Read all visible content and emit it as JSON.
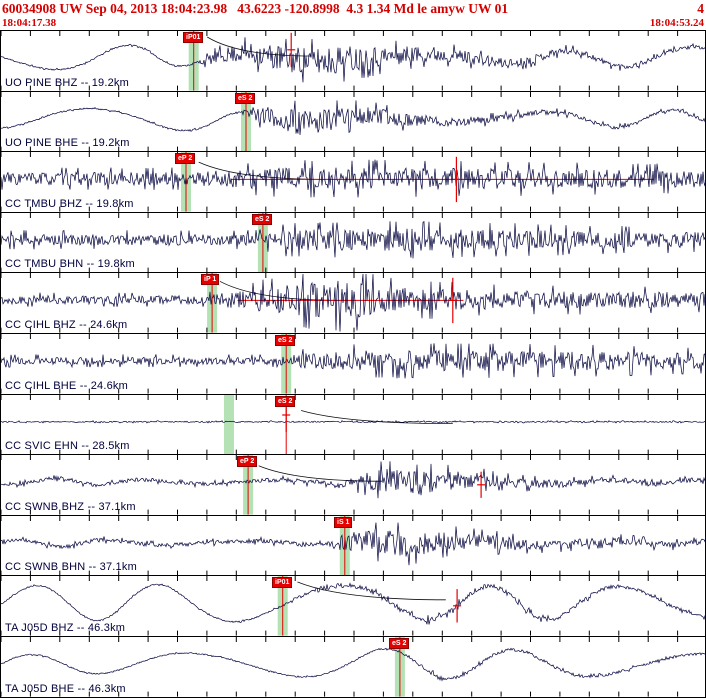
{
  "header": {
    "event_info": "60034908 UW Sep 04, 2013 18:04:23.98   43.6223 -120.8998  4.3 1.34 Md le amyw UW 01",
    "overflow_digit": "4",
    "window_start": "18:04:17.38",
    "window_end": "18:04:53.24"
  },
  "colors": {
    "header_text": "#d40000",
    "wave": "#00003c",
    "pick": "#e60000",
    "band": "#b5e2b5",
    "tick": "#000000"
  },
  "chart_data": {
    "type": "line",
    "title": "Seismic waveform review window, 11 station traces",
    "x_range": [
      "18:04:17.38",
      "18:04:53.24"
    ],
    "tick_intervals": 24,
    "traces": [
      {
        "label": "UO PINE BHZ -- 19.2km",
        "picks": [
          {
            "label": "iP01",
            "x": 0.273
          }
        ],
        "bands": [
          0.273
        ],
        "amp_marker": {
          "x": 0.411,
          "y0": 0.03,
          "y1": 0.6
        },
        "decay": {
          "x0": 0.292,
          "y0": 0.1,
          "x1": 0.44,
          "y1": 0.42
        },
        "wave": {
          "seed": 11,
          "lf_period": 150,
          "lf": [
            [
              0,
              11
            ],
            [
              0.22,
              13
            ],
            [
              0.275,
              6
            ],
            [
              0.5,
              2
            ],
            [
              0.75,
              6
            ],
            [
              1,
              11
            ]
          ],
          "hf": [
            [
              0,
              0.8
            ],
            [
              0.27,
              0.8
            ],
            [
              0.3,
              6
            ],
            [
              0.38,
              13
            ],
            [
              0.47,
              15
            ],
            [
              0.58,
              9
            ],
            [
              0.72,
              5
            ],
            [
              0.85,
              3
            ],
            [
              1,
              2
            ]
          ]
        }
      },
      {
        "label": "UO PINE BHE -- 19.2km",
        "picks": [
          {
            "label": "eS 2",
            "x": 0.347
          }
        ],
        "bands": [
          0.347
        ],
        "wave": {
          "seed": 22,
          "lf_period": 145,
          "lf": [
            [
              0,
              9
            ],
            [
              0.3,
              12
            ],
            [
              0.37,
              5
            ],
            [
              0.6,
              2
            ],
            [
              0.82,
              8
            ],
            [
              1,
              9
            ]
          ],
          "hf": [
            [
              0,
              0.8
            ],
            [
              0.34,
              0.8
            ],
            [
              0.36,
              8
            ],
            [
              0.42,
              15
            ],
            [
              0.5,
              10
            ],
            [
              0.62,
              5
            ],
            [
              0.8,
              2.5
            ],
            [
              1,
              1.5
            ]
          ]
        }
      },
      {
        "label": "CC TMBU BHZ -- 19.8km",
        "picks": [
          {
            "label": "eP 2",
            "x": 0.262
          }
        ],
        "bands": [
          0.262
        ],
        "hline": {
          "x0": 0.325,
          "x1": 0.925,
          "y": 0.46
        },
        "amp_marker": {
          "x": 0.645,
          "y0": 0.08,
          "y1": 0.84
        },
        "decay": {
          "x0": 0.28,
          "y0": 0.17,
          "x1": 0.46,
          "y1": 0.46
        },
        "wave": {
          "seed": 33,
          "hf": [
            [
              0,
              7
            ],
            [
              0.25,
              7
            ],
            [
              0.29,
              9
            ],
            [
              0.42,
              12
            ],
            [
              0.55,
              12
            ],
            [
              0.7,
              11
            ],
            [
              1,
              9
            ]
          ]
        }
      },
      {
        "label": "CC TMBU BHN -- 19.8km",
        "picks": [
          {
            "label": "eS 2",
            "x": 0.371
          }
        ],
        "bands": [
          0.371
        ],
        "wave": {
          "seed": 44,
          "hf": [
            [
              0,
              6
            ],
            [
              0.36,
              6
            ],
            [
              0.41,
              11
            ],
            [
              0.55,
              12
            ],
            [
              0.7,
              11
            ],
            [
              0.85,
              9
            ],
            [
              1,
              8
            ]
          ]
        }
      },
      {
        "label": "CC CIHL BHZ -- 24.6km",
        "picks": [
          {
            "label": "iP 1",
            "x": 0.299
          }
        ],
        "bands": [
          0.299
        ],
        "hline": {
          "x0": 0.335,
          "x1": 0.655,
          "y": 0.46
        },
        "amp_marker": {
          "x": 0.64,
          "y0": 0.08,
          "y1": 0.84
        },
        "decay": {
          "x0": 0.31,
          "y0": 0.14,
          "x1": 0.48,
          "y1": 0.46
        },
        "wave": {
          "seed": 55,
          "hf": [
            [
              0,
              4.5
            ],
            [
              0.29,
              4.5
            ],
            [
              0.32,
              8
            ],
            [
              0.43,
              18
            ],
            [
              0.49,
              21
            ],
            [
              0.56,
              13
            ],
            [
              0.7,
              10
            ],
            [
              1,
              8
            ]
          ]
        }
      },
      {
        "label": "CC CIHL BHE -- 24.6km",
        "picks": [
          {
            "label": "eS 2",
            "x": 0.404
          }
        ],
        "bands": [
          0.404
        ],
        "wave": {
          "seed": 66,
          "hf": [
            [
              0,
              4
            ],
            [
              0.39,
              4
            ],
            [
              0.43,
              8
            ],
            [
              0.52,
              11
            ],
            [
              0.7,
              11
            ],
            [
              0.85,
              10
            ],
            [
              1,
              8
            ]
          ]
        }
      },
      {
        "label": "CC SVIC EHN -- 28.5km",
        "picks": [
          {
            "label": "eS 2",
            "x": 0.404
          }
        ],
        "bands": [
          0.323
        ],
        "amp_marker": {
          "x": 0.404,
          "y0": 0.05,
          "y1": 0.62
        },
        "decay": {
          "x0": 0.425,
          "y0": 0.26,
          "x1": 0.64,
          "y1": 0.48
        },
        "wave": {
          "seed": 77,
          "hf": [
            [
              0,
              0.7
            ],
            [
              1,
              0.7
            ]
          ]
        }
      },
      {
        "label": "CC SWNB BHZ -- 37.1km",
        "picks": [
          {
            "label": "eP 2",
            "x": 0.35
          }
        ],
        "bands": [
          0.35
        ],
        "amp_marker": {
          "x": 0.68,
          "y0": 0.28,
          "y1": 0.72
        },
        "decay": {
          "x0": 0.365,
          "y0": 0.18,
          "x1": 0.54,
          "y1": 0.44
        },
        "wave": {
          "seed": 88,
          "lf_period": 110,
          "lf": [
            [
              0,
              2
            ],
            [
              0.1,
              4
            ],
            [
              0.18,
              2
            ],
            [
              1,
              2
            ]
          ],
          "hf": [
            [
              0,
              2
            ],
            [
              0.35,
              2
            ],
            [
              0.45,
              3
            ],
            [
              0.5,
              6
            ],
            [
              0.53,
              12
            ],
            [
              0.6,
              13
            ],
            [
              0.7,
              6
            ],
            [
              0.85,
              3
            ],
            [
              1,
              2.5
            ]
          ]
        }
      },
      {
        "label": "CC SWNB BHN -- 37.1km",
        "picks": [
          {
            "label": "iS 1",
            "x": 0.487
          }
        ],
        "bands": [
          0.487
        ],
        "wave": {
          "seed": 99,
          "lf_period": 120,
          "lf": [
            [
              0,
              2.5
            ],
            [
              0.1,
              4
            ],
            [
              0.2,
              2
            ],
            [
              1,
              2
            ]
          ],
          "hf": [
            [
              0,
              2
            ],
            [
              0.46,
              2.5
            ],
            [
              0.49,
              10
            ],
            [
              0.56,
              14
            ],
            [
              0.65,
              9
            ],
            [
              0.78,
              5
            ],
            [
              1,
              3
            ]
          ]
        }
      },
      {
        "label": "TA J05D BHZ -- 46.3km",
        "picks": [
          {
            "label": "iP01",
            "x": 0.399
          }
        ],
        "bands": [
          0.399
        ],
        "amp_marker": {
          "x": 0.646,
          "y0": 0.22,
          "y1": 0.78
        },
        "decay": {
          "x0": 0.42,
          "y0": 0.1,
          "x1": 0.63,
          "y1": 0.4
        },
        "wave": {
          "seed": 110,
          "lf_period": 155,
          "lf": [
            [
              0,
              17
            ],
            [
              0.35,
              19
            ],
            [
              0.6,
              17
            ],
            [
              1,
              16
            ]
          ],
          "hf": [
            [
              0,
              0.6
            ],
            [
              0.4,
              0.8
            ],
            [
              0.45,
              3
            ],
            [
              0.6,
              3
            ],
            [
              1,
              1.5
            ]
          ]
        }
      },
      {
        "label": "TA J05D BHE -- 46.3km",
        "picks": [
          {
            "label": "eS 2",
            "x": 0.565
          }
        ],
        "bands": [
          0.565
        ],
        "wave": {
          "seed": 121,
          "lf_period": 165,
          "lf": [
            [
              0,
              9
            ],
            [
              0.3,
              11
            ],
            [
              0.55,
              15
            ],
            [
              0.75,
              14
            ],
            [
              1,
              10
            ]
          ],
          "hf": [
            [
              0,
              0.6
            ],
            [
              0.57,
              0.8
            ],
            [
              0.6,
              2
            ],
            [
              1,
              1.2
            ]
          ]
        }
      }
    ]
  }
}
